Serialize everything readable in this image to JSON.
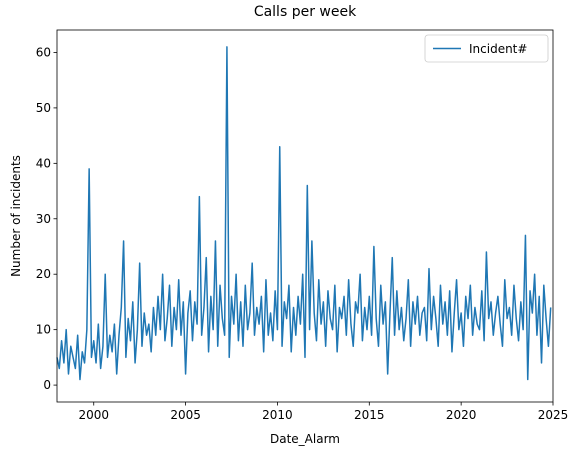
{
  "chart_data": {
    "type": "line",
    "title": "Calls per week",
    "xlabel": "Date_Alarm",
    "ylabel": "Number of incidents",
    "legend": "upper right",
    "xlim": [
      1998,
      2025
    ],
    "xticks": [
      2000,
      2005,
      2010,
      2015,
      2020,
      2025
    ],
    "ylim": [
      -3.05,
      64.05
    ],
    "yticks": [
      0,
      10,
      20,
      30,
      40,
      50,
      60
    ],
    "x": [
      1998,
      1998.125,
      1998.25,
      1998.375,
      1998.5,
      1998.625,
      1998.75,
      1998.875,
      1999,
      1999.125,
      1999.25,
      1999.375,
      1999.5,
      1999.625,
      1999.75,
      1999.875,
      2000,
      2000.125,
      2000.25,
      2000.375,
      2000.5,
      2000.625,
      2000.75,
      2000.875,
      2001,
      2001.125,
      2001.25,
      2001.375,
      2001.5,
      2001.625,
      2001.75,
      2001.875,
      2002,
      2002.125,
      2002.25,
      2002.375,
      2002.5,
      2002.625,
      2002.75,
      2002.875,
      2003,
      2003.125,
      2003.25,
      2003.375,
      2003.5,
      2003.625,
      2003.75,
      2003.875,
      2004,
      2004.125,
      2004.25,
      2004.375,
      2004.5,
      2004.625,
      2004.75,
      2004.875,
      2005,
      2005.125,
      2005.25,
      2005.375,
      2005.5,
      2005.625,
      2005.75,
      2005.875,
      2006,
      2006.125,
      2006.25,
      2006.375,
      2006.5,
      2006.625,
      2006.75,
      2006.875,
      2007,
      2007.125,
      2007.25,
      2007.375,
      2007.5,
      2007.625,
      2007.75,
      2007.875,
      2008,
      2008.125,
      2008.25,
      2008.375,
      2008.5,
      2008.625,
      2008.75,
      2008.875,
      2009,
      2009.125,
      2009.25,
      2009.375,
      2009.5,
      2009.625,
      2009.75,
      2009.875,
      2010,
      2010.125,
      2010.25,
      2010.375,
      2010.5,
      2010.625,
      2010.75,
      2010.875,
      2011,
      2011.125,
      2011.25,
      2011.375,
      2011.5,
      2011.625,
      2011.75,
      2011.875,
      2012,
      2012.125,
      2012.25,
      2012.375,
      2012.5,
      2012.625,
      2012.75,
      2012.875,
      2013,
      2013.125,
      2013.25,
      2013.375,
      2013.5,
      2013.625,
      2013.75,
      2013.875,
      2014,
      2014.125,
      2014.25,
      2014.375,
      2014.5,
      2014.625,
      2014.75,
      2014.875,
      2015,
      2015.125,
      2015.25,
      2015.375,
      2015.5,
      2015.625,
      2015.75,
      2015.875,
      2016,
      2016.125,
      2016.25,
      2016.375,
      2016.5,
      2016.625,
      2016.75,
      2016.875,
      2017,
      2017.125,
      2017.25,
      2017.375,
      2017.5,
      2017.625,
      2017.75,
      2017.875,
      2018,
      2018.125,
      2018.25,
      2018.375,
      2018.5,
      2018.625,
      2018.75,
      2018.875,
      2019,
      2019.125,
      2019.25,
      2019.375,
      2019.5,
      2019.625,
      2019.75,
      2019.875,
      2020,
      2020.125,
      2020.25,
      2020.375,
      2020.5,
      2020.625,
      2020.75,
      2020.875,
      2021,
      2021.125,
      2021.25,
      2021.375,
      2021.5,
      2021.625,
      2021.75,
      2021.875,
      2022,
      2022.125,
      2022.25,
      2022.375,
      2022.5,
      2022.625,
      2022.75,
      2022.875,
      2023,
      2023.125,
      2023.25,
      2023.375,
      2023.5,
      2023.625,
      2023.75,
      2023.875,
      2024,
      2024.125,
      2024.25,
      2024.375,
      2024.5,
      2024.625,
      2024.75,
      2024.875
    ],
    "series": [
      {
        "name": "Incident#",
        "color": "#1f77b4",
        "values": [
          5,
          3,
          8,
          4,
          10,
          2,
          7,
          5,
          3,
          9,
          1,
          6,
          4,
          10,
          39,
          5,
          8,
          4,
          11,
          3,
          7,
          20,
          5,
          9,
          6,
          11,
          2,
          9,
          14,
          26,
          5,
          12,
          8,
          15,
          4,
          10,
          22,
          7,
          13,
          9,
          11,
          6,
          14,
          9,
          16,
          10,
          20,
          8,
          12,
          18,
          7,
          14,
          10,
          19,
          9,
          15,
          2,
          13,
          17,
          8,
          15,
          11,
          34,
          9,
          14,
          23,
          6,
          16,
          10,
          26,
          7,
          18,
          12,
          9,
          61,
          5,
          16,
          11,
          20,
          8,
          15,
          7,
          18,
          10,
          13,
          22,
          9,
          14,
          11,
          16,
          6,
          19,
          9,
          13,
          8,
          17,
          10,
          43,
          7,
          15,
          12,
          18,
          6,
          14,
          9,
          16,
          11,
          20,
          5,
          36,
          10,
          26,
          13,
          8,
          19,
          11,
          15,
          7,
          17,
          12,
          10,
          18,
          6,
          14,
          12,
          16,
          9,
          19,
          11,
          7,
          15,
          13,
          20,
          8,
          14,
          10,
          16,
          9,
          25,
          12,
          7,
          18,
          11,
          15,
          2,
          13,
          23,
          9,
          17,
          10,
          14,
          8,
          12,
          19,
          7,
          15,
          11,
          16,
          9,
          13,
          14,
          8,
          21,
          10,
          16,
          12,
          7,
          18,
          11,
          15,
          9,
          17,
          6,
          13,
          19,
          10,
          13,
          7,
          16,
          12,
          18,
          9,
          14,
          11,
          10,
          17,
          8,
          24,
          12,
          15,
          9,
          13,
          16,
          11,
          7,
          19,
          12,
          14,
          9,
          18,
          12,
          8,
          15,
          10,
          27,
          1,
          17,
          13,
          20,
          9,
          16,
          4,
          18,
          12,
          7,
          14
        ]
      }
    ]
  }
}
